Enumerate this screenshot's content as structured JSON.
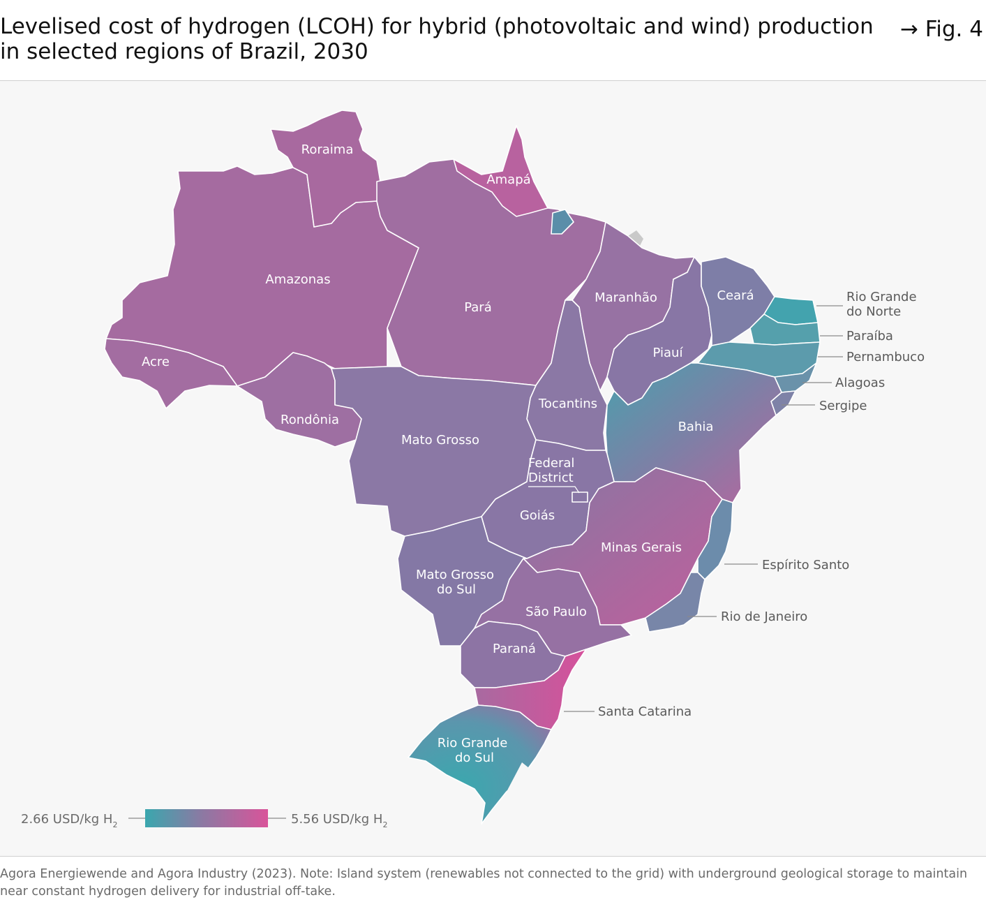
{
  "title": "Levelised cost of hydrogen (LCOH) for hybrid (photovoltaic and wind) production in selected regions of Brazil, 2030",
  "figure_label": "→ Fig. 4",
  "legend": {
    "min_label": "2.66 USD/kg H",
    "max_label": "5.56 USD/kg H",
    "subscript": "2",
    "min_value": 2.66,
    "max_value": 5.56,
    "unit": "USD/kg H2",
    "color_low": "#3aa7ae",
    "color_mid": "#8a7aa3",
    "color_high": "#d9549a"
  },
  "states": {
    "roraima": "Roraima",
    "amapa": "Amapá",
    "amazonas": "Amazonas",
    "para": "Pará",
    "maranhao": "Maranhão",
    "ceara": "Ceará",
    "acre": "Acre",
    "piaui": "Piauí",
    "rondonia": "Rondônia",
    "tocantins": "Tocantins",
    "mato_grosso": "Mato Grosso",
    "bahia": "Bahia",
    "federal_district_1": "Federal",
    "federal_district_2": "District",
    "goias": "Goiás",
    "minas_gerais": "Minas Gerais",
    "mato_grosso_do_sul_1": "Mato Grosso",
    "mato_grosso_do_sul_2": "do Sul",
    "sao_paulo": "São Paulo",
    "parana": "Paraná",
    "rio_grande_do_sul_1": "Rio Grande",
    "rio_grande_do_sul_2": "do Sul",
    "rio_grande_do_norte_1": "Rio Grande",
    "rio_grande_do_norte_2": "do Norte",
    "paraiba": "Paraíba",
    "pernambuco": "Pernambuco",
    "alagoas": "Alagoas",
    "sergipe": "Sergipe",
    "espirito_santo": "Espírito Santo",
    "rio_de_janeiro": "Rio de Janeiro",
    "santa_catarina": "Santa Catarina"
  },
  "source": "Agora Energiewende and Agora Industry (2023). Note: Island system (renewables not connected to the grid) with underground geological storage to maintain near constant hydrogen delivery for industrial off-take."
}
